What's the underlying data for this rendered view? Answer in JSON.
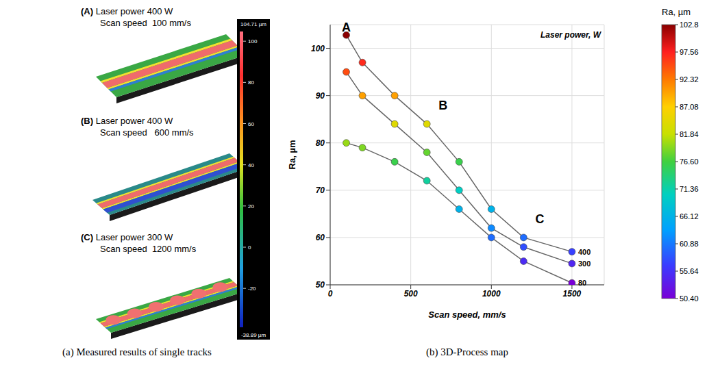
{
  "panel_a": {
    "caption": "(a) Measured results of single tracks",
    "tracks": [
      {
        "letter": "(A)",
        "power": "Laser power 400 W",
        "speed": "Scan speed  100 mm/s"
      },
      {
        "letter": "(B)",
        "power": "Laser power 400 W",
        "speed": "Scan speed   600 mm/s"
      },
      {
        "letter": "(C)",
        "power": "Laser power 300 W",
        "speed": "Scan speed  1200 mm/s"
      }
    ],
    "colorbar": {
      "range": [
        -38.89,
        104.71
      ],
      "range_labels": [
        "-38.89 µm",
        "104.71 µm"
      ],
      "ticks": [
        -20,
        0,
        20,
        40,
        60,
        80,
        100
      ]
    }
  },
  "chart_data": {
    "type": "line",
    "title": "(b) 3D-Process map",
    "x_label": "Scan speed, mm/s",
    "y_label": "Ra, µm",
    "z_label": "Laser power, W",
    "x": [
      100,
      200,
      400,
      600,
      800,
      1000,
      1200,
      1500
    ],
    "series": [
      {
        "name": "400",
        "values": [
          102.8,
          97,
          90,
          84,
          76,
          66,
          60,
          57
        ]
      },
      {
        "name": "300",
        "values": [
          95,
          90,
          84,
          78,
          70,
          62,
          58,
          54.5
        ]
      },
      {
        "name": "80",
        "values": [
          80,
          79,
          76,
          72,
          66,
          60,
          55,
          50.4
        ]
      }
    ],
    "xlim": [
      0,
      1700
    ],
    "xticks": [
      0,
      500,
      1000,
      1500
    ],
    "ylim": [
      50,
      105
    ],
    "yticks": [
      50,
      60,
      70,
      80,
      90,
      100
    ],
    "grid": true,
    "annotations": [
      {
        "text": "A",
        "x": 100,
        "y": 102.8
      },
      {
        "text": "B",
        "x": 700,
        "y": 88
      },
      {
        "text": "C",
        "x": 1300,
        "y": 64
      }
    ],
    "colorbar": {
      "title": "Ra, µm",
      "range": [
        50.4,
        102.8
      ],
      "ticks": [
        {
          "value": 50.4,
          "label": "50.40"
        },
        55.64,
        60.88,
        66.12,
        71.36,
        {
          "value": 76.6,
          "label": "76.60"
        },
        81.84,
        87.08,
        92.32,
        97.56,
        102.8
      ]
    }
  }
}
